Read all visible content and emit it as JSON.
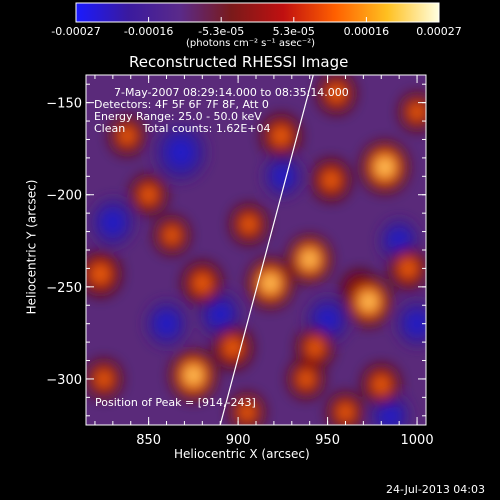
{
  "colorbar": {
    "ticks": [
      "-0.00027",
      "-0.00016",
      "-5.3e-05",
      "5.3e-05",
      "0.00016",
      "0.00027"
    ],
    "unit_label": "(photons cm⁻² s⁻¹ asec⁻²)",
    "stops": [
      "#1a1aff",
      "#3a1a9f",
      "#5a2a8a",
      "#7a1a1a",
      "#c01010",
      "#ff6000",
      "#ffc020",
      "#ffffe0"
    ]
  },
  "chart_data": {
    "type": "heatmap",
    "title": "Reconstructed RHESSI Image",
    "xlabel": "Heliocentric X (arcsec)",
    "ylabel": "Heliocentric Y (arcsec)",
    "xlim": [
      815,
      1005
    ],
    "ylim": [
      -325,
      -135
    ],
    "xticks": [
      850,
      900,
      950,
      1000
    ],
    "yticks": [
      -150,
      -200,
      -250,
      -300
    ],
    "xtick_labels": [
      "850",
      "900",
      "950",
      "1000"
    ],
    "ytick_labels": [
      "−150",
      "−200",
      "−250",
      "−300"
    ],
    "annotations": [
      "7-May-2007 08:29:14.000 to 08:35:14.000",
      "Detectors: 4F 5F 6F 7F 8F, Att 0",
      "Energy Range: 25.0 - 50.0 keV",
      "Clean     Total counts: 1.62E+04"
    ],
    "peak_label": "Position of Peak = [914,-243]",
    "limb_line": {
      "x_start": 890,
      "y_start": -325,
      "x_end": 942,
      "y_end": -135
    },
    "bright_sources": [
      {
        "x": 982,
        "y": -185,
        "level": 1.0
      },
      {
        "x": 940,
        "y": -235,
        "level": 0.8
      },
      {
        "x": 924,
        "y": -168,
        "level": 0.6
      },
      {
        "x": 906,
        "y": -216,
        "level": 0.45
      },
      {
        "x": 952,
        "y": -192,
        "level": 0.55
      },
      {
        "x": 918,
        "y": -248,
        "level": 0.9
      },
      {
        "x": 880,
        "y": -248,
        "level": 0.6
      },
      {
        "x": 823,
        "y": -243,
        "level": 0.7
      },
      {
        "x": 875,
        "y": -298,
        "level": 0.95
      },
      {
        "x": 897,
        "y": -283,
        "level": 0.6
      },
      {
        "x": 968,
        "y": -252,
        "level": 0.5
      },
      {
        "x": 973,
        "y": -258,
        "level": 0.9
      },
      {
        "x": 995,
        "y": -240,
        "level": 0.55
      },
      {
        "x": 980,
        "y": -303,
        "level": 0.5
      },
      {
        "x": 938,
        "y": -300,
        "level": 0.4
      },
      {
        "x": 943,
        "y": -283,
        "level": 0.45
      },
      {
        "x": 825,
        "y": -300,
        "level": 0.4
      },
      {
        "x": 850,
        "y": -200,
        "level": 0.45
      },
      {
        "x": 838,
        "y": -168,
        "level": 0.4
      },
      {
        "x": 955,
        "y": -145,
        "level": 0.5
      },
      {
        "x": 1000,
        "y": -155,
        "level": 0.35
      },
      {
        "x": 863,
        "y": -222,
        "level": 0.35
      },
      {
        "x": 960,
        "y": -318,
        "level": 0.4
      },
      {
        "x": 905,
        "y": -318,
        "level": 0.35
      }
    ],
    "dark_sources": [
      {
        "x": 868,
        "y": -177,
        "level": 1.0
      },
      {
        "x": 830,
        "y": -215,
        "level": 0.6
      },
      {
        "x": 890,
        "y": -265,
        "level": 0.5
      },
      {
        "x": 950,
        "y": -268,
        "level": 0.55
      },
      {
        "x": 860,
        "y": -270,
        "level": 0.5
      },
      {
        "x": 1000,
        "y": -270,
        "level": 0.5
      },
      {
        "x": 990,
        "y": -225,
        "level": 0.4
      },
      {
        "x": 925,
        "y": -190,
        "level": 0.35
      },
      {
        "x": 985,
        "y": -320,
        "level": 0.4
      }
    ]
  },
  "footer": {
    "timestamp": "24-Jul-2013 04:03"
  }
}
